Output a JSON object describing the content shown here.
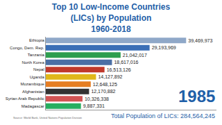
{
  "chart_data": {
    "type": "bar",
    "orientation": "horizontal",
    "title": "Top 10 Low-Income Countries\n(LICs) by Population\n1960-2018",
    "categories": [
      "Ethiopia",
      "Congo, Dem. Rep.",
      "Tanzania",
      "North Korea",
      "Nepal",
      "Uganda",
      "Mozambique",
      "Afghanistan",
      "Syrian Arab Republic",
      "Madagascar"
    ],
    "values": [
      39469973,
      29193969,
      21042017,
      18617016,
      16513126,
      14127892,
      12648125,
      12170882,
      10326338,
      9887331
    ],
    "value_labels": [
      "39,469,973",
      "29,193,969",
      "21,042,017",
      "18,617,016",
      "16,513,126",
      "14,127,892",
      "12,648,125",
      "12,170,882",
      "10,326,338",
      "9,887,331"
    ],
    "colors": [
      "#8fa8c8",
      "#3b6fb6",
      "#2e9e4f",
      "#4a6fa5",
      "#c0392b",
      "#e0b81a",
      "#e67e22",
      "#333333",
      "#d35454",
      "#27ae60"
    ],
    "data_labels": true,
    "tick_labels": "y",
    "grid": false,
    "xlim": [
      0,
      48000000
    ],
    "annotations": [
      "1985",
      "Total Population of LICs: 284,564,245",
      "Source: World Bank, United Nations Population Division"
    ]
  }
}
